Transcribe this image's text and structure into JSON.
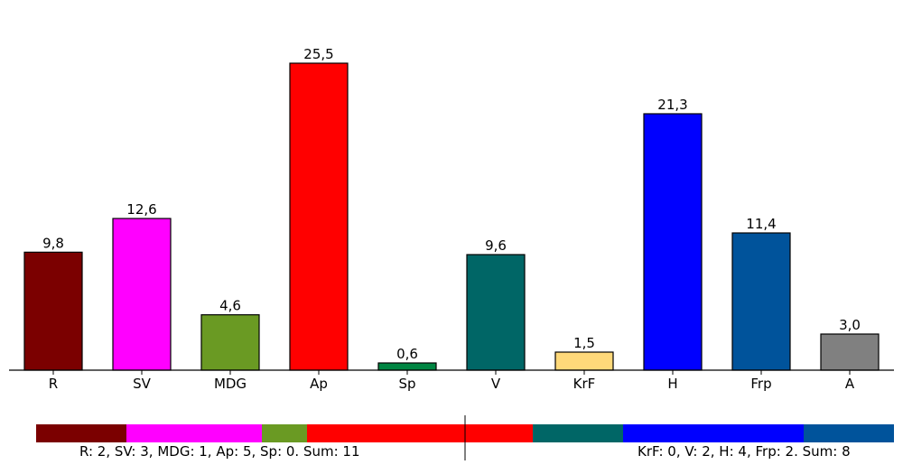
{
  "chart_data": {
    "type": "bar",
    "categories": [
      "R",
      "SV",
      "MDG",
      "Ap",
      "Sp",
      "V",
      "KrF",
      "H",
      "Frp",
      "A"
    ],
    "values": [
      9.8,
      12.6,
      4.6,
      25.5,
      0.6,
      9.6,
      1.5,
      21.3,
      11.4,
      3.0
    ],
    "value_labels": [
      "9,8",
      "12,6",
      "4,6",
      "25,5",
      "0,6",
      "9,6",
      "1,5",
      "21,3",
      "11,4",
      "3,0"
    ],
    "colors": [
      "#7b0000",
      "#ff00ff",
      "#6a9a23",
      "#ff0000",
      "#008542",
      "#006666",
      "#ffd97a",
      "#0000ff",
      "#00539b",
      "#808080"
    ],
    "ylim": [
      0,
      25.5
    ],
    "title": "",
    "xlabel": "",
    "ylabel": "",
    "seat_bar": {
      "parties": [
        "R",
        "SV",
        "MDG",
        "Ap",
        "Sp",
        "KrF",
        "V",
        "H",
        "Frp"
      ],
      "seats": [
        2,
        3,
        1,
        5,
        0,
        0,
        2,
        4,
        2
      ],
      "colors": [
        "#7b0000",
        "#ff00ff",
        "#6a9a23",
        "#ff0000",
        "#008542",
        "#ffd97a",
        "#006666",
        "#0000ff",
        "#00539b"
      ],
      "total_seats": 19,
      "majority_seats": 9.5
    },
    "seat_summary_left": "R: 2, SV: 3, MDG: 1, Ap: 5, Sp: 0. Sum: 11",
    "seat_summary_right": "KrF: 0, V: 2, H: 4, Frp: 2. Sum: 8"
  }
}
